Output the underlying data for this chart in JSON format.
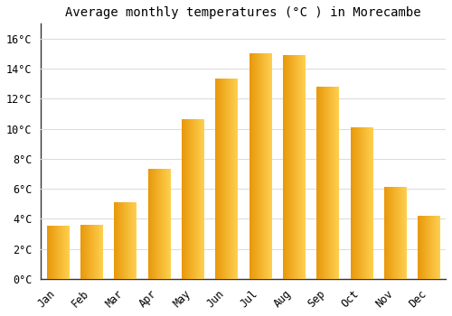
{
  "title": "Average monthly temperatures (°C ) in Morecambe",
  "months": [
    "Jan",
    "Feb",
    "Mar",
    "Apr",
    "May",
    "Jun",
    "Jul",
    "Aug",
    "Sep",
    "Oct",
    "Nov",
    "Dec"
  ],
  "temperatures": [
    3.5,
    3.6,
    5.1,
    7.3,
    10.6,
    13.3,
    15.0,
    14.9,
    12.8,
    10.1,
    6.1,
    4.2
  ],
  "bar_color_dark": "#E8980A",
  "bar_color_light": "#FFD050",
  "background_color": "#FFFFFF",
  "grid_color": "#DDDDDD",
  "ytick_labels": [
    "0°C",
    "2°C",
    "4°C",
    "6°C",
    "8°C",
    "10°C",
    "12°C",
    "14°C",
    "16°C"
  ],
  "ytick_values": [
    0,
    2,
    4,
    6,
    8,
    10,
    12,
    14,
    16
  ],
  "ylim": [
    0,
    17
  ],
  "title_fontsize": 10,
  "tick_fontsize": 8.5,
  "font_family": "monospace"
}
